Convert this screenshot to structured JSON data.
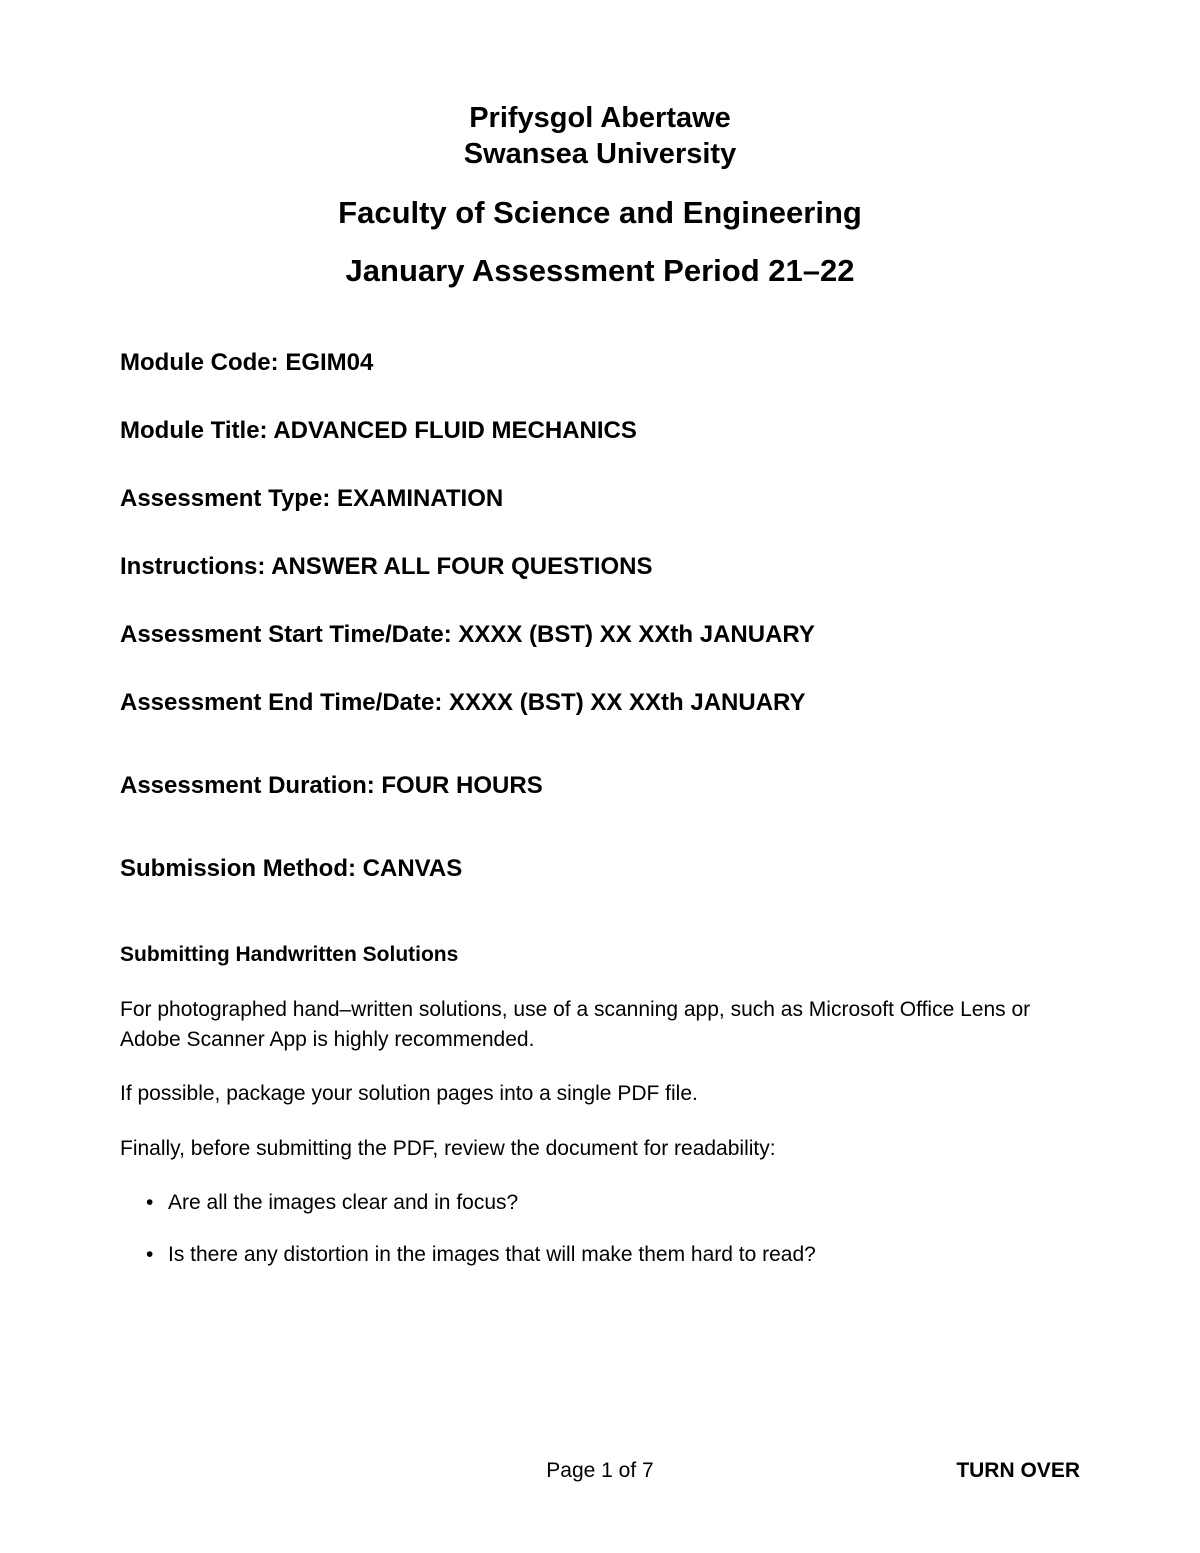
{
  "header": {
    "university_welsh": "Prifysgol Abertawe",
    "university_english": "Swansea University",
    "faculty": "Faculty of Science and Engineering",
    "assessment_period": "January Assessment Period 21–22"
  },
  "info": {
    "module_code": "Module Code: EGIM04",
    "module_title": "Module Title: ADVANCED FLUID MECHANICS",
    "assessment_type": "Assessment Type: EXAMINATION",
    "instructions": "Instructions: ANSWER ALL FOUR QUESTIONS",
    "start": "Assessment Start Time/Date: XXXX (BST) XX XXth JANUARY",
    "end": "Assessment End Time/Date: XXXX (BST) XX XXth JANUARY",
    "duration": "Assessment Duration: FOUR HOURS",
    "submission": "Submission Method: CANVAS"
  },
  "section": {
    "heading": "Submitting Handwritten Solutions",
    "para1": "For photographed hand–written solutions, use of a scanning app, such as Microsoft Office Lens or Adobe Scanner App is highly recommended.",
    "para2": "If possible, package your solution pages into a single PDF file.",
    "para3": "Finally, before submitting the PDF, review the document for readability:",
    "bullets": [
      "Are all the images clear and in focus?",
      "Is there any distortion in the images that will make them hard to read?"
    ]
  },
  "footer": {
    "page": "Page 1 of 7",
    "turn_over": "TURN OVER"
  },
  "style": {
    "background_color": "#ffffff",
    "text_color": "#000000",
    "heading_fontsize_pt": 22,
    "faculty_fontsize_pt": 23,
    "info_fontsize_pt": 18,
    "body_fontsize_pt": 16,
    "font_family": "Arial"
  }
}
